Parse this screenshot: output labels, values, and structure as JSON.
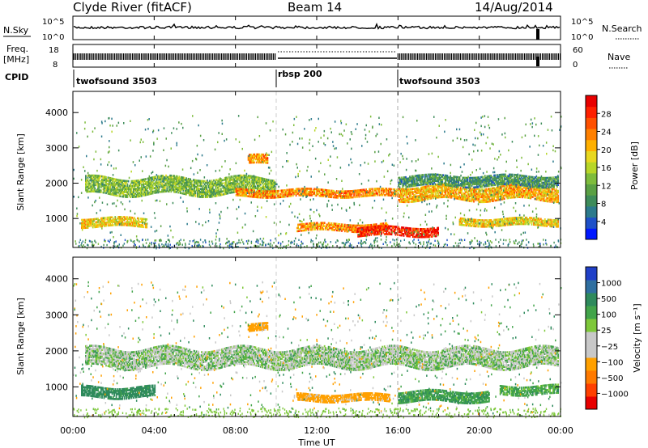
{
  "header": {
    "station": "Clyde River (fitACF)",
    "beam": "Beam 14",
    "date": "14/Aug/2014"
  },
  "side_labels": {
    "nsky": "N.Sky",
    "freq_line1": "Freq.",
    "freq_line2": "[MHz]",
    "cpid": "CPID",
    "nsearch": "N.Search",
    "nave": "Nave"
  },
  "noise_panel": {
    "left_ticks": [
      "10^5",
      "10^0"
    ],
    "right_ticks": [
      "10^5",
      "10^0"
    ]
  },
  "freq_panel": {
    "left_ticks": [
      "18",
      "8"
    ],
    "right_ticks": [
      "60",
      "0"
    ]
  },
  "cpid_segments": [
    {
      "label": "twofsound 3503",
      "start_hour": 0
    },
    {
      "label": "rbsp 200",
      "start_hour": 10
    },
    {
      "label": "twofsound 3503",
      "start_hour": 16
    }
  ],
  "power_colorbar": {
    "title": "Power [dB]",
    "ticks": [
      "28",
      "24",
      "20",
      "16",
      "12",
      "8",
      "4"
    ],
    "colors": [
      "#0018ff",
      "#1e50c8",
      "#2c7a8c",
      "#3e8c5a",
      "#5aa044",
      "#7ebc3c",
      "#b8d628",
      "#e8d820",
      "#ffb000",
      "#ff8000",
      "#ff5000",
      "#ff2000",
      "#e80000"
    ]
  },
  "velocity_colorbar": {
    "title": "Velocity [m s⁻¹]",
    "ticks": [
      "1000",
      "500",
      "100",
      "25",
      "−25",
      "−100",
      "−500",
      "−1000"
    ],
    "colors": [
      "#2040c8",
      "#2f6fa0",
      "#2e8a5c",
      "#42a44a",
      "#7ec83a",
      "#c8c8c8",
      "#c8c8c8",
      "#ffa000",
      "#ff7a00",
      "#ff4000",
      "#e80000"
    ]
  },
  "chart_data": {
    "type": "heatmap",
    "title": "Clyde River (fitACF)",
    "xlabel": "Time UT",
    "ylabel": "Slant Range [km]",
    "x_ticks": [
      "00:00",
      "04:00",
      "08:00",
      "12:00",
      "16:00",
      "20:00",
      "00:00"
    ],
    "x_tick_hours": [
      0,
      4,
      8,
      12,
      16,
      20,
      24
    ],
    "xlim_hours": [
      0,
      24
    ],
    "y_ticks": [
      1000,
      2000,
      3000,
      4000
    ],
    "ylim_km": [
      180,
      4600
    ],
    "power_bands": [
      {
        "from_h": 0.6,
        "to_h": 10,
        "center_km": 1900,
        "half_km": 230,
        "value_db": 12
      },
      {
        "from_h": 8,
        "to_h": 16,
        "center_km": 1720,
        "half_km": 110,
        "value_db": 22
      },
      {
        "from_h": 16,
        "to_h": 23.9,
        "center_km": 1720,
        "half_km": 200,
        "value_db": 20
      },
      {
        "from_h": 16,
        "to_h": 23.9,
        "center_km": 2050,
        "half_km": 140,
        "value_db": 8
      },
      {
        "from_h": 0.4,
        "to_h": 3.6,
        "center_km": 880,
        "half_km": 120,
        "value_db": 18
      },
      {
        "from_h": 8.6,
        "to_h": 9.6,
        "center_km": 2650,
        "half_km": 120,
        "value_db": 22
      },
      {
        "from_h": 11,
        "to_h": 15.5,
        "center_km": 750,
        "half_km": 110,
        "value_db": 22
      },
      {
        "from_h": 14,
        "to_h": 18,
        "center_km": 620,
        "half_km": 120,
        "value_db": 28
      },
      {
        "from_h": 19,
        "to_h": 23.9,
        "center_km": 900,
        "half_km": 110,
        "value_db": 18
      }
    ],
    "velocity_bands": [
      {
        "from_h": 0.6,
        "to_h": 23.9,
        "center_km": 1800,
        "half_km": 260,
        "value_ms": 0
      },
      {
        "from_h": 0.4,
        "to_h": 4,
        "center_km": 850,
        "half_km": 150,
        "value_ms": 150
      },
      {
        "from_h": 11,
        "to_h": 15.6,
        "center_km": 700,
        "half_km": 110,
        "value_ms": -150
      },
      {
        "from_h": 16,
        "to_h": 20.5,
        "center_km": 730,
        "half_km": 150,
        "value_ms": 80
      },
      {
        "from_h": 8.6,
        "to_h": 9.6,
        "center_km": 2650,
        "half_km": 110,
        "value_ms": -150
      },
      {
        "from_h": 21,
        "to_h": 23.9,
        "center_km": 900,
        "half_km": 120,
        "value_ms": 60
      }
    ]
  }
}
